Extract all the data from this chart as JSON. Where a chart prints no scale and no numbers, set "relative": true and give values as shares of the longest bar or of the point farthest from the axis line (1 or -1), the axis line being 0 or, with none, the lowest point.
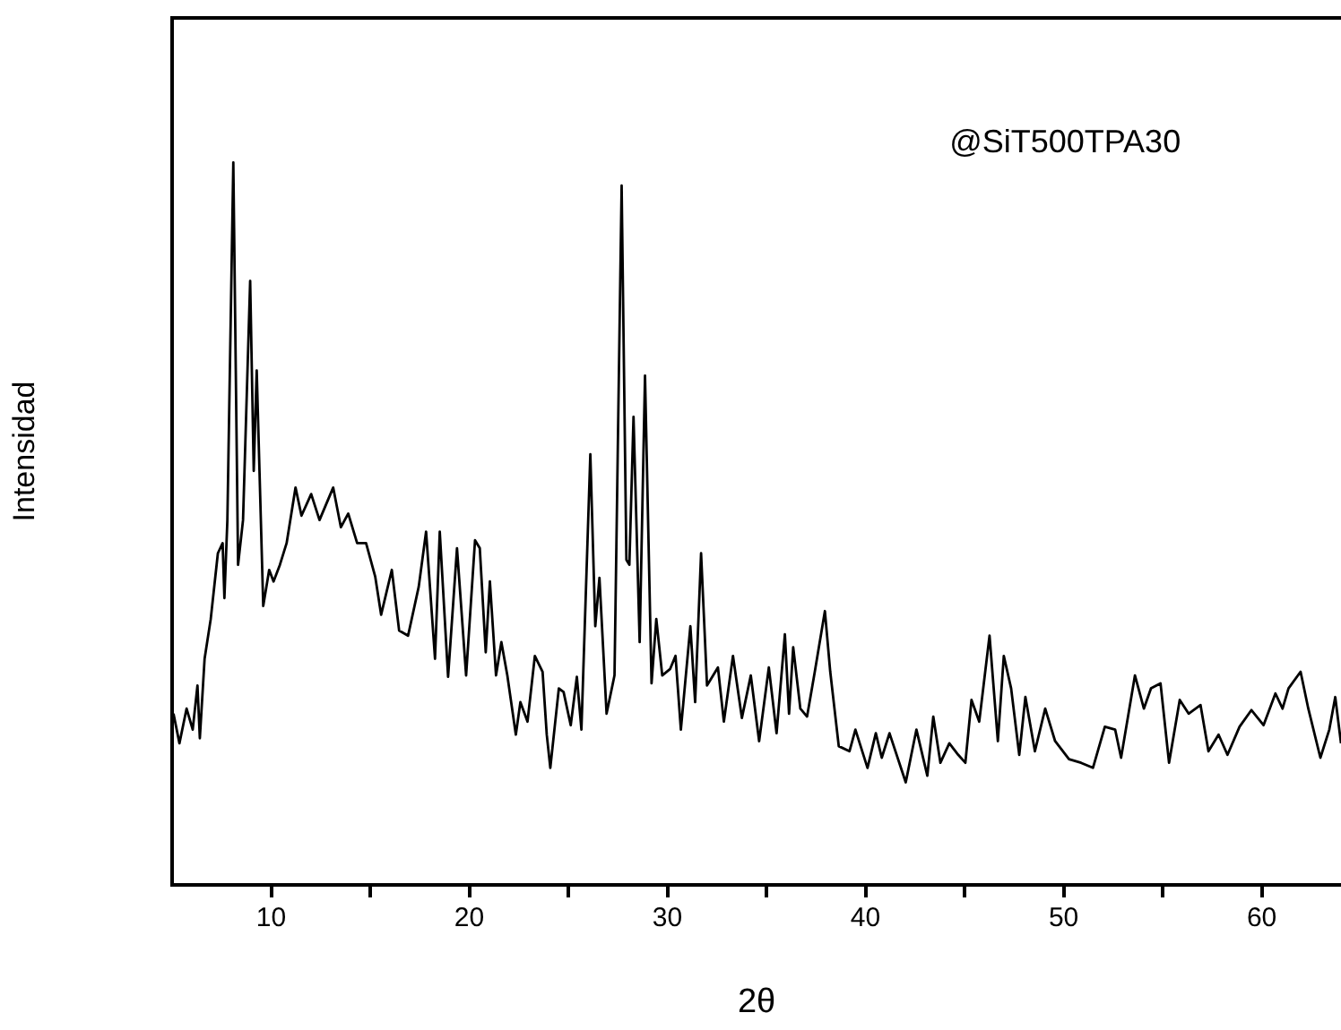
{
  "chart_data": {
    "type": "line",
    "relative": true,
    "xlabel": "2θ",
    "ylabel": "Intensidad",
    "annotations": [
      "@SiT500TPA30"
    ],
    "color": "#000000",
    "marker": "none",
    "line_style": "solid",
    "grid": false,
    "legend": false,
    "xlim": [
      5,
      64
    ],
    "xticks": [
      10,
      {
        "value": 15,
        "label": null
      },
      20,
      {
        "value": 25,
        "label": null
      },
      30,
      {
        "value": 35,
        "label": null
      },
      40,
      {
        "value": 45,
        "label": null
      },
      50,
      {
        "value": 55,
        "label": null
      },
      60
    ],
    "x": [
      5.07,
      5.37,
      5.73,
      6.04,
      6.28,
      6.4,
      6.64,
      6.95,
      7.31,
      7.55,
      7.64,
      7.79,
      8.09,
      8.33,
      8.58,
      8.94,
      9.12,
      9.27,
      9.6,
      9.9,
      10.12,
      10.44,
      10.78,
      11.23,
      11.53,
      12.02,
      12.44,
      13.13,
      13.52,
      13.89,
      14.34,
      14.79,
      15.25,
      15.55,
      16.09,
      16.46,
      16.91,
      17.45,
      17.82,
      18.27,
      18.51,
      18.93,
      19.38,
      19.84,
      20.29,
      20.53,
      20.83,
      21.04,
      21.35,
      21.62,
      21.92,
      22.35,
      22.58,
      22.94,
      23.31,
      23.7,
      23.91,
      24.09,
      24.52,
      24.76,
      25.12,
      25.43,
      25.66,
      26.11,
      26.36,
      26.57,
      26.93,
      27.33,
      27.69,
      27.93,
      28.08,
      28.29,
      28.6,
      28.87,
      29.2,
      29.44,
      29.74,
      30.14,
      30.41,
      30.68,
      31.16,
      31.4,
      31.7,
      32.0,
      32.55,
      32.85,
      33.31,
      33.76,
      34.21,
      34.63,
      35.12,
      35.51,
      35.93,
      36.14,
      36.35,
      36.71,
      37.05,
      37.44,
      37.95,
      38.22,
      38.65,
      39.19,
      39.49,
      40.1,
      40.52,
      40.82,
      41.21,
      42.03,
      42.57,
      43.12,
      43.42,
      43.78,
      44.23,
      44.68,
      45.04,
      45.35,
      45.74,
      46.26,
      46.68,
      46.98,
      47.35,
      47.76,
      48.07,
      48.55,
      49.07,
      49.57,
      50.27,
      50.88,
      51.48,
      52.08,
      52.6,
      52.9,
      53.6,
      54.05,
      54.41,
      54.89,
      55.32,
      55.86,
      56.31,
      56.91,
      57.31,
      57.82,
      58.27,
      58.88,
      59.48,
      60.09,
      60.69,
      61.05,
      61.35,
      61.96,
      62.35,
      62.96,
      63.41,
      63.71,
      64.0
    ],
    "values": [
      0.237,
      0.196,
      0.244,
      0.215,
      0.276,
      0.203,
      0.313,
      0.368,
      0.459,
      0.473,
      0.397,
      0.505,
      1.0,
      0.443,
      0.505,
      0.836,
      0.573,
      0.712,
      0.386,
      0.436,
      0.42,
      0.443,
      0.473,
      0.55,
      0.511,
      0.541,
      0.505,
      0.55,
      0.495,
      0.514,
      0.473,
      0.473,
      0.427,
      0.374,
      0.436,
      0.352,
      0.345,
      0.413,
      0.489,
      0.313,
      0.489,
      0.288,
      0.466,
      0.29,
      0.477,
      0.466,
      0.322,
      0.42,
      0.29,
      0.336,
      0.29,
      0.208,
      0.253,
      0.226,
      0.317,
      0.295,
      0.208,
      0.162,
      0.272,
      0.267,
      0.221,
      0.288,
      0.215,
      0.596,
      0.358,
      0.425,
      0.237,
      0.29,
      0.968,
      0.45,
      0.443,
      0.648,
      0.336,
      0.705,
      0.279,
      0.368,
      0.29,
      0.299,
      0.317,
      0.215,
      0.358,
      0.253,
      0.459,
      0.276,
      0.301,
      0.226,
      0.317,
      0.231,
      0.29,
      0.199,
      0.301,
      0.21,
      0.347,
      0.237,
      0.329,
      0.244,
      0.233,
      0.295,
      0.379,
      0.295,
      0.192,
      0.185,
      0.215,
      0.162,
      0.21,
      0.176,
      0.21,
      0.142,
      0.215,
      0.151,
      0.233,
      0.169,
      0.196,
      0.18,
      0.169,
      0.256,
      0.226,
      0.345,
      0.199,
      0.317,
      0.272,
      0.18,
      0.26,
      0.185,
      0.244,
      0.199,
      0.174,
      0.169,
      0.162,
      0.219,
      0.215,
      0.176,
      0.29,
      0.244,
      0.272,
      0.279,
      0.169,
      0.256,
      0.237,
      0.249,
      0.185,
      0.208,
      0.18,
      0.219,
      0.242,
      0.221,
      0.265,
      0.244,
      0.272,
      0.295,
      0.244,
      0.176,
      0.215,
      0.26,
      0.196
    ]
  }
}
